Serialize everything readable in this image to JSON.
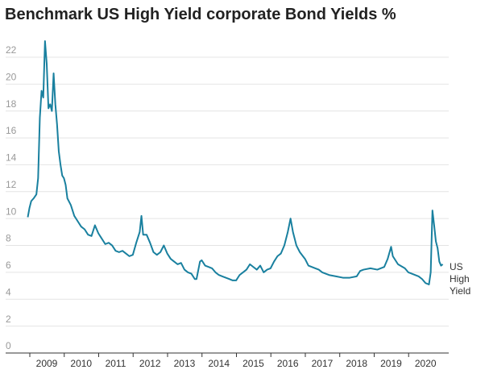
{
  "chart_data": {
    "type": "line",
    "title": "Benchmark US High Yield corporate Bond Yields %",
    "x": [
      2008.45,
      2008.5,
      2008.55,
      2008.62,
      2008.7,
      2008.75,
      2008.8,
      2008.85,
      2008.9,
      2008.95,
      2009.0,
      2009.05,
      2009.1,
      2009.15,
      2009.2,
      2009.25,
      2009.3,
      2009.35,
      2009.4,
      2009.45,
      2009.5,
      2009.55,
      2009.6,
      2009.7,
      2009.8,
      2009.9,
      2010.0,
      2010.1,
      2010.2,
      2010.3,
      2010.4,
      2010.5,
      2010.6,
      2010.7,
      2010.8,
      2010.9,
      2011.0,
      2011.1,
      2011.2,
      2011.3,
      2011.4,
      2011.5,
      2011.6,
      2011.7,
      2011.75,
      2011.8,
      2011.9,
      2012.0,
      2012.1,
      2012.2,
      2012.3,
      2012.4,
      2012.5,
      2012.6,
      2012.7,
      2012.8,
      2012.9,
      2013.0,
      2013.1,
      2013.2,
      2013.3,
      2013.35,
      2013.45,
      2013.5,
      2013.6,
      2013.7,
      2013.8,
      2013.9,
      2014.0,
      2014.1,
      2014.2,
      2014.3,
      2014.4,
      2014.5,
      2014.6,
      2014.7,
      2014.8,
      2014.9,
      2015.0,
      2015.1,
      2015.2,
      2015.3,
      2015.4,
      2015.5,
      2015.6,
      2015.7,
      2015.8,
      2015.9,
      2016.0,
      2016.08,
      2016.15,
      2016.25,
      2016.35,
      2016.5,
      2016.6,
      2016.8,
      2016.9,
      2017.0,
      2017.2,
      2017.4,
      2017.6,
      2017.8,
      2018.0,
      2018.1,
      2018.2,
      2018.4,
      2018.6,
      2018.8,
      2018.9,
      2019.0,
      2019.05,
      2019.2,
      2019.4,
      2019.5,
      2019.6,
      2019.8,
      2019.9,
      2020.0,
      2020.1,
      2020.15,
      2020.2,
      2020.25,
      2020.3,
      2020.35,
      2020.4,
      2020.45,
      2020.5
    ],
    "series": [
      {
        "name": "US High Yield",
        "color": "#19809f",
        "values": [
          10.1,
          10.8,
          11.3,
          11.5,
          11.8,
          13,
          17.5,
          19.5,
          19,
          23.2,
          21.5,
          18.2,
          18.5,
          18,
          20.8,
          18.5,
          17,
          15,
          14,
          13.2,
          13,
          12.5,
          11.5,
          11,
          10.2,
          9.8,
          9.4,
          9.2,
          8.8,
          8.7,
          9.5,
          8.9,
          8.5,
          8.1,
          8.2,
          8.0,
          7.6,
          7.5,
          7.6,
          7.4,
          7.2,
          7.3,
          8.2,
          9.0,
          10.2,
          8.8,
          8.8,
          8.2,
          7.5,
          7.3,
          7.5,
          8.0,
          7.4,
          7.0,
          6.8,
          6.6,
          6.7,
          6.2,
          6.0,
          5.9,
          5.5,
          5.5,
          6.8,
          6.9,
          6.5,
          6.4,
          6.3,
          6.0,
          5.8,
          5.7,
          5.6,
          5.5,
          5.4,
          5.4,
          5.8,
          6.0,
          6.2,
          6.6,
          6.4,
          6.2,
          6.5,
          6.0,
          6.2,
          6.3,
          6.8,
          7.2,
          7.4,
          8.0,
          9.0,
          10.0,
          9.0,
          8.0,
          7.5,
          7.0,
          6.5,
          6.3,
          6.2,
          6.0,
          5.8,
          5.7,
          5.6,
          5.6,
          5.7,
          6.1,
          6.2,
          6.3,
          6.2,
          6.4,
          7.0,
          7.9,
          7.2,
          6.6,
          6.3,
          6.0,
          5.9,
          5.7,
          5.5,
          5.2,
          5.1,
          6.0,
          10.6,
          9.5,
          8.3,
          7.8,
          6.8,
          6.5,
          6.6
        ]
      }
    ],
    "xlim": [
      2008.2,
      2020.9
    ],
    "xticks": [
      2009,
      2010,
      2011,
      2012,
      2013,
      2014,
      2015,
      2016,
      2017,
      2018,
      2019,
      2020
    ],
    "ylim": [
      0,
      24
    ],
    "yticks": [
      0,
      2,
      4,
      6,
      8,
      10,
      12,
      14,
      16,
      18,
      20,
      22
    ],
    "grid": true
  }
}
